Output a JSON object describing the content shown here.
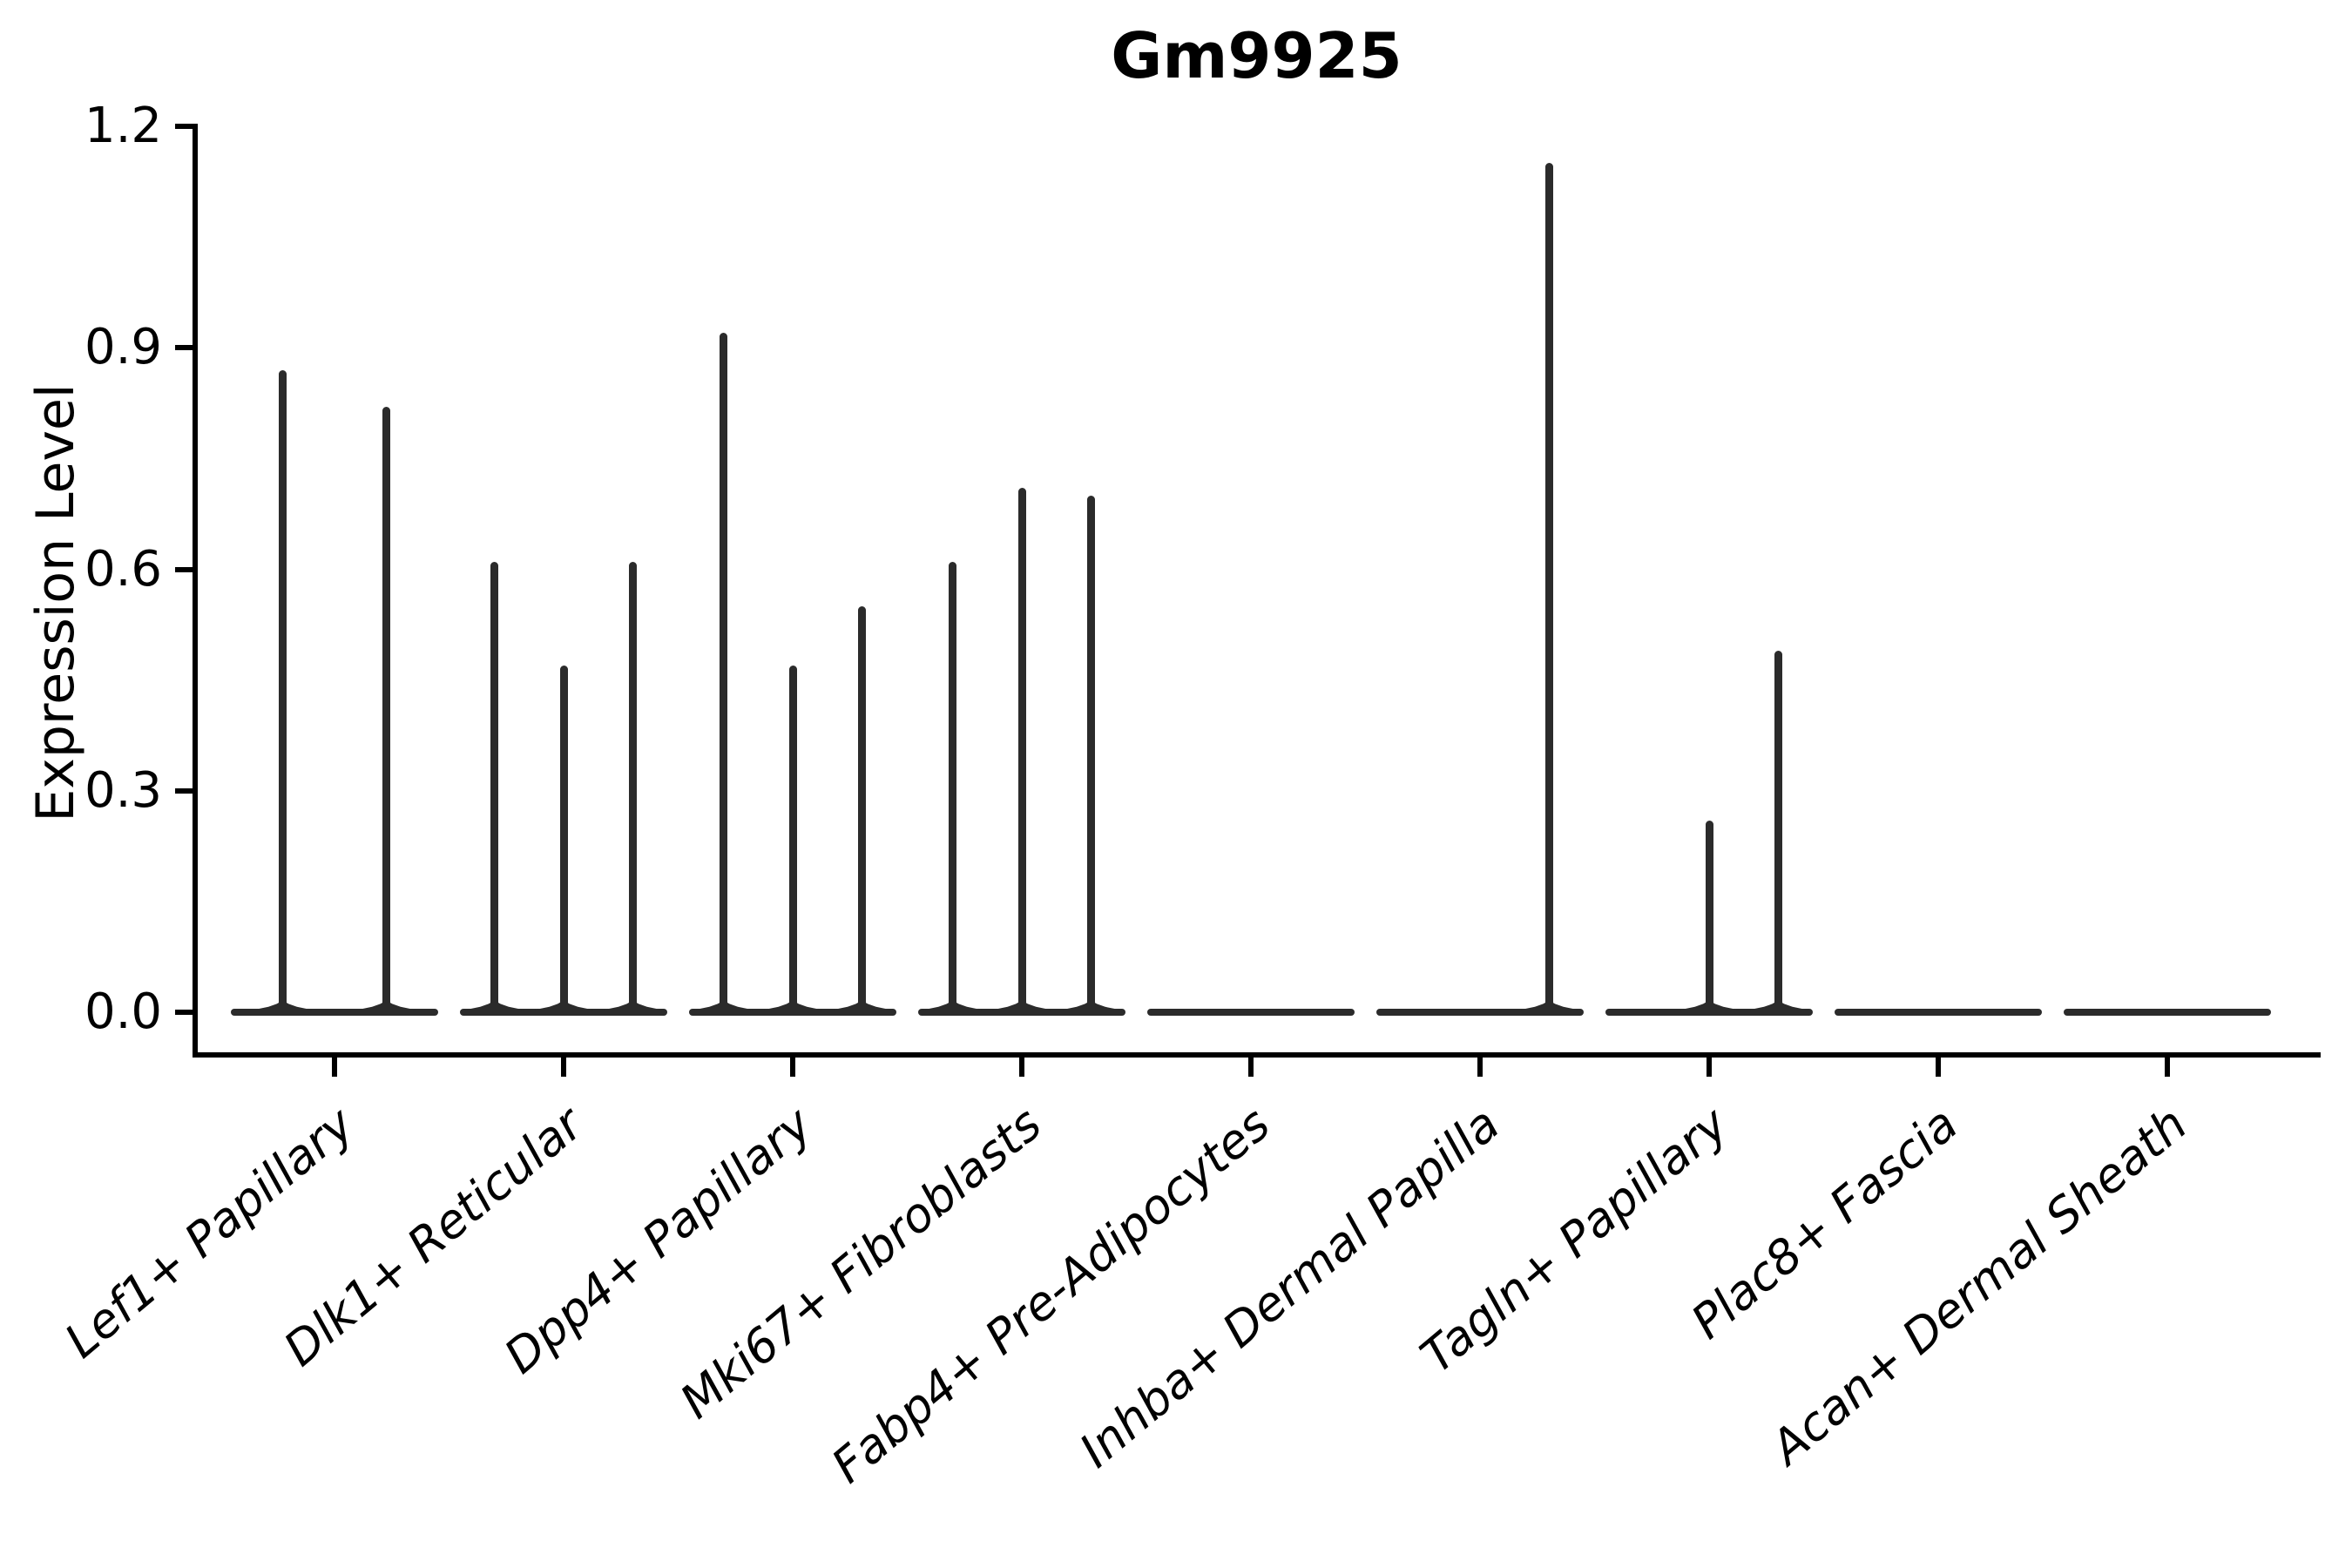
{
  "figure": {
    "title": "Gm9925",
    "y_axis": {
      "label": "Expression Level",
      "tick_labels": [
        "0.0",
        "0.3",
        "0.6",
        "0.9",
        "1.2"
      ]
    },
    "colors": {
      "violin_line": "#2b2b2b",
      "axis": "#000000",
      "text": "#000000",
      "background": "#ffffff"
    }
  },
  "chart_data": {
    "type": "violin",
    "title": "Gm9925",
    "xlabel": "",
    "ylabel": "Expression Level",
    "ylim": [
      0,
      1.2
    ],
    "yticks": [
      0.0,
      0.3,
      0.6,
      0.9,
      1.2
    ],
    "grid": false,
    "legend": "none",
    "description": "Very narrow (spike-like) violins of expression level per cell-type group; most mass at 0 forms a flat baseline per group, thin spikes mark maximum expression per violin.",
    "categories": [
      "Lef1+ Papillary",
      "Dlk1+ Reticular",
      "Dpp4+ Papillary",
      "Mki67+ Fibroblasts",
      "Fabp4+ Pre-Adipocytes",
      "Inhba+ Dermal Papilla",
      "Tagln+ Papillary",
      "Plac8+ Fascia",
      "Acan+ Dermal Sheath"
    ],
    "groups": [
      {
        "category": "Lef1+ Papillary",
        "violin_max_values": [
          0.87,
          0.82
        ]
      },
      {
        "category": "Dlk1+ Reticular",
        "violin_max_values": [
          0.61,
          0.47,
          0.61
        ]
      },
      {
        "category": "Dpp4+ Papillary",
        "violin_max_values": [
          0.92,
          0.47,
          0.55
        ]
      },
      {
        "category": "Mki67+ Fibroblasts",
        "violin_max_values": [
          0.61,
          0.71,
          0.7
        ]
      },
      {
        "category": "Fabp4+ Pre-Adipocytes",
        "violin_max_values": [
          0,
          0,
          0
        ]
      },
      {
        "category": "Inhba+ Dermal Papilla",
        "violin_max_values": [
          0,
          0,
          1.15
        ]
      },
      {
        "category": "Tagln+ Papillary",
        "violin_max_values": [
          0,
          0.26,
          0.49
        ]
      },
      {
        "category": "Plac8+ Fascia",
        "violin_max_values": [
          0,
          0,
          0
        ]
      },
      {
        "category": "Acan+ Dermal Sheath",
        "violin_max_values": [
          0,
          0,
          0
        ]
      }
    ]
  }
}
